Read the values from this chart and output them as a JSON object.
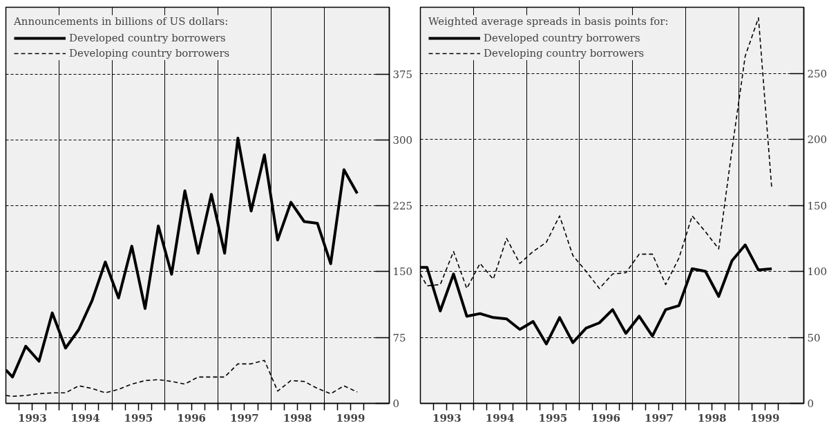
{
  "chart_data": [
    {
      "type": "line",
      "legend_title": "Announcements in billions of US dollars:",
      "legend": "top left",
      "grid": true,
      "x": [
        1993.0,
        1993.125,
        1993.375,
        1993.625,
        1993.875,
        1994.125,
        1994.375,
        1994.625,
        1994.875,
        1995.125,
        1995.375,
        1995.625,
        1995.875,
        1996.125,
        1996.375,
        1996.625,
        1996.875,
        1997.125,
        1997.375,
        1997.625,
        1997.875,
        1998.125,
        1998.375,
        1998.625,
        1998.875,
        1999.125,
        1999.375,
        1999.625
      ],
      "series": [
        {
          "name": "Developed country borrowers",
          "color": "#000000",
          "line_style": "solid",
          "values": [
            38,
            30,
            65,
            48,
            103,
            63,
            84,
            117,
            161,
            120,
            179,
            108,
            202,
            147,
            242,
            171,
            238,
            171,
            302,
            219,
            283,
            186,
            229,
            207,
            205,
            159,
            266,
            239
          ]
        },
        {
          "name": "Developing country borrowers",
          "color": "#000000",
          "line_style": "dashed",
          "values": [
            9,
            8,
            9,
            11,
            12,
            12,
            20,
            17,
            12,
            16,
            22,
            26,
            27,
            25,
            22,
            30,
            30,
            30,
            45,
            45,
            49,
            14,
            26,
            25,
            17,
            11,
            20,
            13
          ]
        }
      ],
      "xlim": [
        1993.0,
        2000.23
      ],
      "ylim": [
        0,
        451
      ],
      "yticks": [
        0,
        75,
        150,
        225,
        300,
        375
      ],
      "xticks": [
        {
          "value": 1993.25,
          "label": null
        },
        {
          "value": 1993.5,
          "label": "1993"
        },
        {
          "value": 1993.75,
          "label": null
        },
        {
          "value": 1994.0,
          "label": null
        },
        {
          "value": 1994.25,
          "label": null
        },
        {
          "value": 1994.5,
          "label": "1994"
        },
        {
          "value": 1994.75,
          "label": null
        },
        {
          "value": 1995.0,
          "label": null
        },
        {
          "value": 1995.25,
          "label": null
        },
        {
          "value": 1995.5,
          "label": "1995"
        },
        {
          "value": 1995.75,
          "label": null
        },
        {
          "value": 1996.0,
          "label": null
        },
        {
          "value": 1996.25,
          "label": null
        },
        {
          "value": 1996.5,
          "label": "1996"
        },
        {
          "value": 1996.75,
          "label": null
        },
        {
          "value": 1997.0,
          "label": null
        },
        {
          "value": 1997.25,
          "label": null
        },
        {
          "value": 1997.5,
          "label": "1997"
        },
        {
          "value": 1997.75,
          "label": null
        },
        {
          "value": 1998.0,
          "label": null
        },
        {
          "value": 1998.25,
          "label": null
        },
        {
          "value": 1998.5,
          "label": "1998"
        },
        {
          "value": 1998.75,
          "label": null
        },
        {
          "value": 1999.0,
          "label": null
        },
        {
          "value": 1999.25,
          "label": null
        },
        {
          "value": 1999.5,
          "label": "1999"
        },
        {
          "value": 1999.75,
          "label": null
        }
      ]
    },
    {
      "type": "line",
      "legend_title": "Weighted average spreads in basis points for:",
      "legend": "top left",
      "grid": true,
      "x": [
        1993.0,
        1993.125,
        1993.375,
        1993.625,
        1993.875,
        1994.125,
        1994.375,
        1994.625,
        1994.875,
        1995.125,
        1995.375,
        1995.625,
        1995.875,
        1996.125,
        1996.375,
        1996.625,
        1996.875,
        1997.125,
        1997.375,
        1997.625,
        1997.875,
        1998.125,
        1998.375,
        1998.625,
        1998.875,
        1999.125,
        1999.375,
        1999.625
      ],
      "series": [
        {
          "name": "Developed country borrowers",
          "color": "#000000",
          "line_style": "solid",
          "values": [
            103,
            103,
            70,
            98,
            66,
            68,
            65,
            64,
            56,
            62,
            45,
            65,
            46,
            57,
            61,
            71,
            53,
            66,
            51,
            71,
            74,
            102,
            100,
            81,
            108,
            120,
            101,
            102
          ]
        },
        {
          "name": "Developing country borrowers",
          "color": "#000000",
          "line_style": "dashed",
          "values": [
            98,
            89,
            90,
            115,
            87,
            106,
            94,
            125,
            106,
            115,
            122,
            142,
            112,
            100,
            87,
            98,
            99,
            113,
            113,
            90,
            110,
            142,
            130,
            117,
            192,
            263,
            292,
            163
          ]
        }
      ],
      "xlim": [
        1993.0,
        2000.23
      ],
      "ylim": [
        0,
        300
      ],
      "yticks": [
        0,
        50,
        100,
        150,
        200,
        250
      ],
      "xticks": [
        {
          "value": 1993.25,
          "label": null
        },
        {
          "value": 1993.5,
          "label": "1993"
        },
        {
          "value": 1993.75,
          "label": null
        },
        {
          "value": 1994.0,
          "label": null
        },
        {
          "value": 1994.25,
          "label": null
        },
        {
          "value": 1994.5,
          "label": "1994"
        },
        {
          "value": 1994.75,
          "label": null
        },
        {
          "value": 1995.0,
          "label": null
        },
        {
          "value": 1995.25,
          "label": null
        },
        {
          "value": 1995.5,
          "label": "1995"
        },
        {
          "value": 1995.75,
          "label": null
        },
        {
          "value": 1996.0,
          "label": null
        },
        {
          "value": 1996.25,
          "label": null
        },
        {
          "value": 1996.5,
          "label": "1996"
        },
        {
          "value": 1996.75,
          "label": null
        },
        {
          "value": 1997.0,
          "label": null
        },
        {
          "value": 1997.25,
          "label": null
        },
        {
          "value": 1997.5,
          "label": "1997"
        },
        {
          "value": 1997.75,
          "label": null
        },
        {
          "value": 1998.0,
          "label": null
        },
        {
          "value": 1998.25,
          "label": null
        },
        {
          "value": 1998.5,
          "label": "1998"
        },
        {
          "value": 1998.75,
          "label": null
        },
        {
          "value": 1999.0,
          "label": null
        },
        {
          "value": 1999.25,
          "label": null
        },
        {
          "value": 1999.5,
          "label": "1999"
        },
        {
          "value": 1999.75,
          "label": null
        }
      ]
    }
  ]
}
